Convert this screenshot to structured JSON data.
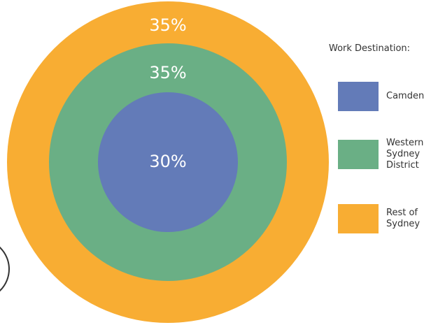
{
  "chart_data": {
    "type": "concentric",
    "legend_title": "Work Destination:",
    "categories": [
      "Camden",
      "Western Sydney District",
      "Rest of Sydney"
    ],
    "values": [
      30,
      35,
      35
    ],
    "value_labels": [
      "30%",
      "35%",
      "35%"
    ],
    "colors": [
      "#637bb8",
      "#6aaf85",
      "#f8ad33"
    ],
    "legend": "right"
  }
}
